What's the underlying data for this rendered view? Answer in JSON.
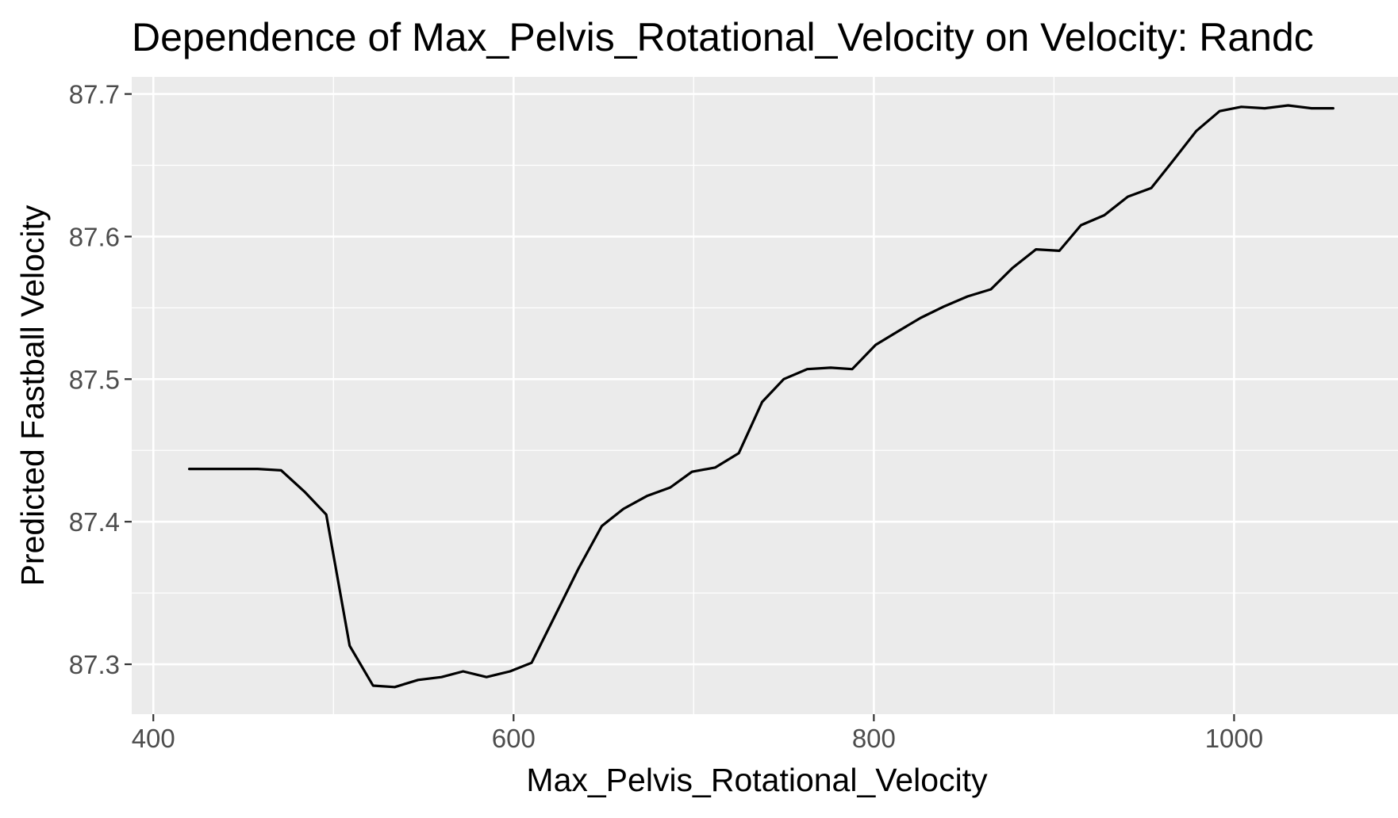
{
  "chart_data": {
    "type": "line",
    "title": "Dependence of Max_Pelvis_Rotational_Velocity on Velocity: Randc",
    "xlabel": "Max_Pelvis_Rotational_Velocity",
    "ylabel": "Predicted Fastball Velocity",
    "xlim": [
      388,
      1091
    ],
    "ylim": [
      87.265,
      87.712
    ],
    "x_ticks": [
      400,
      600,
      800,
      1000
    ],
    "x_tick_labels": [
      "400",
      "600",
      "800",
      "1000"
    ],
    "y_ticks": [
      87.3,
      87.4,
      87.5,
      87.6,
      87.7
    ],
    "y_tick_labels": [
      "87.3",
      "87.4",
      "87.5",
      "87.6",
      "87.7"
    ],
    "grid": true,
    "legend": "none",
    "series": [
      {
        "color": "#000000",
        "x": [
          420,
          433,
          446,
          458,
          471,
          484,
          496,
          509,
          522,
          534,
          547,
          560,
          572,
          585,
          598,
          610,
          623,
          636,
          649,
          661,
          674,
          687,
          699,
          712,
          725,
          738,
          750,
          763,
          776,
          788,
          801,
          814,
          826,
          839,
          852,
          865,
          877,
          890,
          903,
          915,
          928,
          941,
          954,
          966,
          979,
          992,
          1004,
          1017,
          1030,
          1043,
          1055
        ],
        "values": [
          87.437,
          87.437,
          87.437,
          87.437,
          87.436,
          87.421,
          87.405,
          87.313,
          87.285,
          87.284,
          87.289,
          87.291,
          87.295,
          87.291,
          87.295,
          87.301,
          87.334,
          87.367,
          87.397,
          87.409,
          87.418,
          87.424,
          87.435,
          87.438,
          87.448,
          87.484,
          87.5,
          87.507,
          87.508,
          87.507,
          87.524,
          87.534,
          87.543,
          87.551,
          87.558,
          87.563,
          87.578,
          87.591,
          87.59,
          87.608,
          87.615,
          87.628,
          87.634,
          87.653,
          87.674,
          87.688,
          87.691,
          87.69,
          87.692,
          87.69,
          87.69
        ]
      }
    ]
  }
}
